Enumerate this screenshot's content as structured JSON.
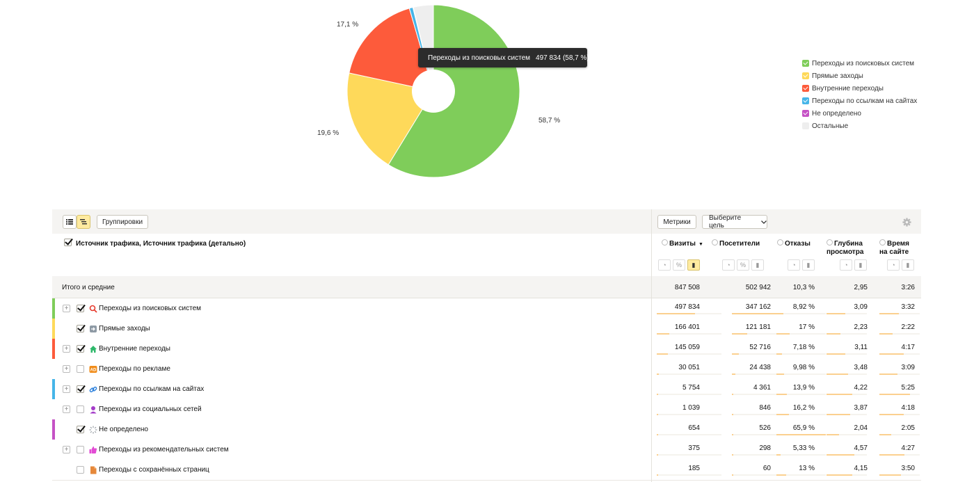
{
  "chart_data": {
    "type": "pie",
    "slices": [
      {
        "name": "Переходы из поисковых систем",
        "value": 497834,
        "percent_label": "58,7 %",
        "color": "#7fcd5a"
      },
      {
        "name": "Прямые заходы",
        "value": 166401,
        "percent_label": "19,6 %",
        "color": "#fed95a"
      },
      {
        "name": "Внутренние переходы",
        "value": 145059,
        "percent_label": "17,1 %",
        "color": "#fd5b3b"
      },
      {
        "name": "Переходы по ссылкам на сайтах",
        "value": 5754,
        "percent_label": "",
        "color": "#46b5e8"
      },
      {
        "name": "Не определено",
        "value": 654,
        "percent_label": "",
        "color": "#c552c5"
      },
      {
        "name": "Остальные",
        "value": 31806,
        "percent_label": "",
        "color": "#eeeeee"
      }
    ],
    "donut": true
  },
  "tooltip": {
    "name": "Переходы из поисковых систем",
    "value": "497 834 (58,7 %)"
  },
  "legend": [
    {
      "label": "Переходы из поисковых систем",
      "color": "#7fcd5a",
      "checked": true
    },
    {
      "label": "Прямые заходы",
      "color": "#fed95a",
      "checked": true
    },
    {
      "label": "Внутренние переходы",
      "color": "#fd5b3b",
      "checked": true
    },
    {
      "label": "Переходы по ссылкам на сайтах",
      "color": "#46b5e8",
      "checked": true
    },
    {
      "label": "Не определено",
      "color": "#c552c5",
      "checked": true
    },
    {
      "label": "Остальные",
      "color": "#eeeeee",
      "checked": false
    }
  ],
  "toolbar": {
    "groupings_label": "Группировки",
    "metrics_label": "Метрики",
    "goal_label": "Выберите цель"
  },
  "table": {
    "dimension_title": "Источник трафика, Источник трафика (детально)",
    "metrics": [
      {
        "label": "Визиты",
        "sorted": true
      },
      {
        "label": "Посетители"
      },
      {
        "label": "Отказы"
      },
      {
        "label": "Глубина просмотра",
        "line1": "Глубина",
        "line2": "просмотра"
      },
      {
        "label": "Время на сайте",
        "line1": "Время",
        "line2": "на сайте"
      }
    ],
    "totals": {
      "label": "Итого и средние",
      "values": [
        "847 508",
        "502 942",
        "10,3 %",
        "2,95",
        "3:26"
      ]
    },
    "rows": [
      {
        "label": "Переходы из поисковых систем",
        "icon": "search-icon",
        "checked": true,
        "expandable": true,
        "color": "#7fcd5a",
        "values": [
          "497 834",
          "347 162",
          "8,92 %",
          "3,09",
          "3:32"
        ],
        "bars": [
          0.587,
          0.69,
          0.14,
          0.47,
          0.49
        ]
      },
      {
        "label": "Прямые заходы",
        "icon": "direct-entry-icon",
        "checked": true,
        "expandable": false,
        "color": "#fed95a",
        "values": [
          "166 401",
          "121 181",
          "17 %",
          "2,23",
          "2:22"
        ],
        "bars": [
          0.196,
          0.24,
          0.26,
          0.34,
          0.33
        ]
      },
      {
        "label": "Внутренние переходы",
        "icon": "home-icon",
        "checked": true,
        "expandable": true,
        "color": "#fd5b3b",
        "values": [
          "145 059",
          "52 716",
          "7,18 %",
          "3,11",
          "4:17"
        ],
        "bars": [
          0.171,
          0.105,
          0.11,
          0.47,
          0.6
        ]
      },
      {
        "label": "Переходы по рекламе",
        "icon": "ad-icon",
        "checked": false,
        "expandable": true,
        "color": "",
        "values": [
          "30 051",
          "24 438",
          "9,98 %",
          "3,48",
          "3:09"
        ],
        "bars": [
          0.035,
          0.05,
          0.15,
          0.53,
          0.44
        ]
      },
      {
        "label": "Переходы по ссылкам на сайтах",
        "icon": "link-icon",
        "checked": true,
        "expandable": true,
        "color": "#46b5e8",
        "values": [
          "5 754",
          "4 361",
          "13,9 %",
          "4,22",
          "5:25"
        ],
        "bars": [
          0.007,
          0.009,
          0.21,
          0.64,
          0.76
        ]
      },
      {
        "label": "Переходы из социальных сетей",
        "icon": "social-icon",
        "checked": false,
        "expandable": true,
        "color": "",
        "values": [
          "1 039",
          "846",
          "16,2 %",
          "3,87",
          "4:18"
        ],
        "bars": [
          0.001,
          0.002,
          0.25,
          0.59,
          0.6
        ]
      },
      {
        "label": "Не определено",
        "icon": "undefined-icon",
        "checked": true,
        "expandable": false,
        "color": "#c552c5",
        "values": [
          "654",
          "526",
          "65,9 %",
          "2,04",
          "2:05"
        ],
        "bars": [
          0.001,
          0.001,
          1.0,
          0.31,
          0.29
        ]
      },
      {
        "label": "Переходы из рекомендательных систем",
        "icon": "thumbs-up-icon",
        "checked": false,
        "expandable": true,
        "color": "",
        "values": [
          "375",
          "298",
          "5,33 %",
          "4,57",
          "4:27"
        ],
        "bars": [
          0.0,
          0.0,
          0.08,
          0.69,
          0.62
        ]
      },
      {
        "label": "Переходы с сохранённых страниц",
        "icon": "saved-page-icon",
        "checked": false,
        "expandable": false,
        "color": "",
        "values": [
          "185",
          "60",
          "13 %",
          "4,15",
          "3:50"
        ],
        "bars": [
          0.0,
          0.0,
          0.2,
          0.63,
          0.54
        ]
      }
    ]
  }
}
